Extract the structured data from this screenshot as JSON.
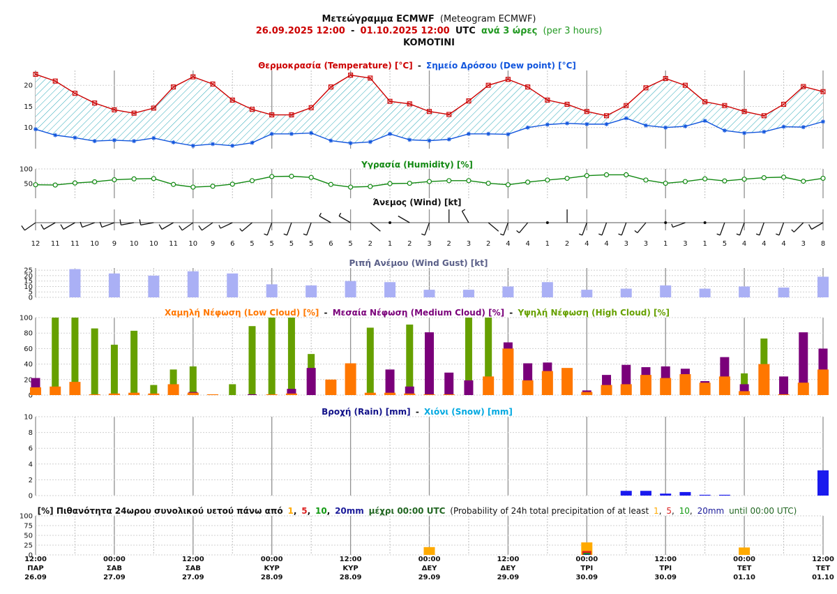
{
  "header": {
    "title_main": "Μετεώγραμμα ECMWF",
    "title_sub": "(Meteogram ECMWF)",
    "period_from": "26.09.2025 12:00",
    "period_sep": "-",
    "period_to": "01.10.2025 12:00",
    "period_utc": "UTC",
    "period_step": "ανά 3 ώρες",
    "period_step_en": "(per 3 hours)",
    "location": "KOMOTINI"
  },
  "panels": {
    "temp": {
      "title_a": "Θερμοκρασία (Temperature) [°C]",
      "sep": "-",
      "title_b": "Σημείο Δρόσου (Dew point) [°C]"
    },
    "humidity": {
      "title": "Υγρασία (Humidity) [%]"
    },
    "wind": {
      "title": "Άνεμος (Wind) [kt]"
    },
    "gust": {
      "title": "Ριπή Ανέμου (Wind Gust) [kt]"
    },
    "cloud": {
      "title_low": "Χαμηλή Νέφωση (Low Cloud) [%]",
      "sep1": "-",
      "title_med": "Μεσαία Νέφωση (Medium Cloud) [%]",
      "sep2": "-",
      "title_high": "Υψηλή Νέφωση (High Cloud) [%]"
    },
    "rain": {
      "title_rain": "Βροχή (Rain) [mm]",
      "sep": "-",
      "title_snow": "Χιόνι (Snow) [mm]"
    },
    "prob": {
      "pre": "[%] Πιθανότητα 24ωρου συνολικού υετού πάνω από",
      "t1": "1",
      "c1": ",",
      "t5": "5",
      "c2": ",",
      "t10": "10",
      "c3": ",",
      "t20": "20mm",
      "until": "μέχρι 00:00 UTC",
      "en_pre": "(Probability of 24h total precipitation of at least",
      "e1": "1",
      "ec1": ",",
      "e5": "5",
      "ec2": ",",
      "e10": "10",
      "ec3": ",",
      "e20": "20mm",
      "en_until": "until 00:00 UTC)"
    }
  },
  "colors": {
    "temperature": "#cc0000",
    "dewpoint": "#1155dd",
    "humidity": "#118811",
    "gust": "#aab0f5",
    "low_cloud": "#ff7700",
    "medium_cloud": "#7a007a",
    "high_cloud": "#66a000",
    "rain": "#1a1aee",
    "snow": "#00a8e0",
    "p1": "#ffaa00",
    "p5": "#dd2222",
    "p10": "#119911",
    "p20": "#1a1a99",
    "period_dates": "#cc0000",
    "period_step": "#229922"
  },
  "time_axis": {
    "ticks": [
      {
        "time": "12:00",
        "day": "ΠΑΡ",
        "date": "26.09"
      },
      {
        "time": "00:00",
        "day": "ΣΑΒ",
        "date": "27.09"
      },
      {
        "time": "12:00",
        "day": "ΣΑΒ",
        "date": "27.09"
      },
      {
        "time": "00:00",
        "day": "ΚΥΡ",
        "date": "28.09"
      },
      {
        "time": "12:00",
        "day": "ΚΥΡ",
        "date": "28.09"
      },
      {
        "time": "00:00",
        "day": "ΔΕΥ",
        "date": "29.09"
      },
      {
        "time": "12:00",
        "day": "ΔΕΥ",
        "date": "29.09"
      },
      {
        "time": "00:00",
        "day": "ΤΡΙ",
        "date": "30.09"
      },
      {
        "time": "12:00",
        "day": "ΤΡΙ",
        "date": "30.09"
      },
      {
        "time": "00:00",
        "day": "ΤΕΤ",
        "date": "01.10"
      },
      {
        "time": "12:00",
        "day": "ΤΕΤ",
        "date": "01.10"
      }
    ]
  },
  "chart_data": [
    {
      "type": "area",
      "title": "Θερμοκρασία (Temperature) [°C] - Σημείο Δρόσου (Dew point) [°C]",
      "x_step_hours": 3,
      "x_range": [
        "26.09.2025 12:00",
        "01.10.2025 12:00"
      ],
      "ylim": [
        5,
        23.5
      ],
      "yticks": [
        10,
        15,
        20
      ],
      "series": [
        {
          "name": "Θερμοκρασία (Temperature) [°C]",
          "values": [
            22.6,
            21.0,
            18.1,
            15.8,
            14.2,
            13.4,
            14.6,
            19.6,
            22.0,
            20.3,
            16.5,
            14.3,
            13.0,
            13.0,
            14.7,
            19.6,
            22.4,
            21.7,
            16.2,
            15.6,
            13.8,
            13.1,
            16.3,
            20.0,
            21.4,
            19.6,
            16.5,
            15.5,
            13.8,
            12.8,
            15.2,
            19.4,
            21.6,
            20.0,
            16.1,
            15.2,
            13.8,
            12.8,
            15.5,
            19.7,
            18.5
          ]
        },
        {
          "name": "Σημείο Δρόσου (Dew point) [°C]",
          "values": [
            9.6,
            8.2,
            7.6,
            6.8,
            7.0,
            6.8,
            7.5,
            6.5,
            5.7,
            6.1,
            5.7,
            6.4,
            8.5,
            8.5,
            8.7,
            6.9,
            6.3,
            6.6,
            8.5,
            7.1,
            6.9,
            7.2,
            8.5,
            8.5,
            8.4,
            10.0,
            10.7,
            11.0,
            10.8,
            10.8,
            12.2,
            10.5,
            10.0,
            10.3,
            11.6,
            9.3,
            8.7,
            9.0,
            10.2,
            10.1,
            11.4
          ]
        }
      ]
    },
    {
      "type": "line",
      "title": "Υγρασία (Humidity) [%]",
      "ylim": [
        0,
        100
      ],
      "yticks": [
        50,
        100
      ],
      "series": [
        {
          "name": "Υγρασία (Humidity) [%]",
          "values": [
            46,
            45,
            52,
            56,
            63,
            66,
            67,
            47,
            38,
            41,
            48,
            60,
            74,
            75,
            71,
            47,
            38,
            40,
            50,
            51,
            57,
            60,
            60,
            51,
            46,
            55,
            62,
            68,
            77,
            80,
            80,
            62,
            51,
            57,
            66,
            59,
            65,
            70,
            72,
            58,
            68
          ]
        }
      ]
    },
    {
      "type": "wind_barbs",
      "title": "Άνεμος (Wind) [kt]",
      "speed_labels": [
        "12",
        "11",
        "11",
        "10",
        "9",
        "10",
        "10",
        "11",
        "10",
        "9",
        "6",
        "5",
        "5",
        "5",
        "5",
        "6",
        "5",
        "2",
        "1",
        "2",
        "3",
        "2",
        "3",
        "2",
        "4",
        "4",
        "1",
        "2",
        "4",
        "4",
        "3",
        "3",
        "1",
        "3",
        "1",
        "5",
        "4",
        "4",
        "4",
        "3",
        "8"
      ],
      "directions_deg": [
        235,
        240,
        240,
        250,
        250,
        260,
        260,
        240,
        235,
        235,
        245,
        230,
        200,
        200,
        200,
        300,
        300,
        130,
        0,
        300,
        200,
        0,
        330,
        130,
        200,
        220,
        140,
        0,
        200,
        200,
        200,
        220,
        0,
        250,
        340,
        200,
        200,
        200,
        200,
        225,
        240
      ]
    },
    {
      "type": "bar",
      "title": "Ριπή Ανέμου (Wind Gust) [kt]",
      "ylim": [
        0,
        27
      ],
      "yticks": [
        0,
        5,
        10,
        15,
        20,
        25
      ],
      "series": [
        {
          "name": "Ριπή Ανέμου (Wind Gust) [kt]",
          "values": [
            26,
            22,
            20,
            24,
            22,
            12,
            11,
            15,
            14,
            7,
            7,
            10,
            14,
            7,
            8,
            11,
            8,
            10,
            9,
            19
          ]
        }
      ]
    },
    {
      "type": "bar",
      "title": "Χαμηλή Νέφωση (Low Cloud) [%] - Μεσαία Νέφωση (Medium Cloud) [%] - Υψηλή Νέφωση (High Cloud) [%]",
      "ylim": [
        0,
        100
      ],
      "yticks": [
        0,
        20,
        40,
        60,
        80,
        100
      ],
      "series": [
        {
          "name": "Χαμηλή Νέφωση (Low Cloud) [%]",
          "values": [
            10,
            11,
            17,
            1,
            2,
            3,
            2,
            14,
            3,
            1,
            0,
            0,
            1,
            2,
            0,
            20,
            41,
            3,
            3,
            2,
            1,
            1,
            0,
            24,
            60,
            19,
            31,
            35,
            4,
            13,
            14,
            26,
            22,
            27,
            16,
            24,
            5,
            40,
            1,
            16,
            33
          ]
        },
        {
          "name": "Μεσαία Νέφωση (Medium Cloud) [%]",
          "values": [
            22,
            0,
            0,
            0,
            0,
            0,
            0,
            0,
            4,
            0,
            0,
            1,
            0,
            8,
            35,
            3,
            0,
            0,
            33,
            11,
            81,
            29,
            19,
            20,
            68,
            41,
            42,
            0,
            6,
            26,
            39,
            36,
            37,
            34,
            18,
            49,
            14,
            0,
            24,
            81,
            60
          ]
        },
        {
          "name": "Υψηλή Νέφωση (High Cloud) [%]",
          "values": [
            0,
            100,
            100,
            86,
            65,
            83,
            13,
            33,
            37,
            0,
            14,
            89,
            100,
            100,
            53,
            0,
            0,
            87,
            0,
            91,
            0,
            0,
            100,
            100,
            0,
            0,
            0,
            0,
            0,
            0,
            0,
            0,
            0,
            0,
            0,
            0,
            28,
            73,
            0,
            0,
            0
          ]
        }
      ]
    },
    {
      "type": "bar",
      "title": "Βροχή (Rain) [mm] - Χιόνι (Snow) [mm]",
      "ylim": [
        0,
        10
      ],
      "yticks": [
        0,
        2,
        4,
        6,
        8,
        10
      ],
      "series": [
        {
          "name": "Βροχή (Rain) [mm]",
          "values": [
            0,
            0,
            0,
            0,
            0,
            0,
            0,
            0,
            0,
            0,
            0,
            0,
            0,
            0,
            0,
            0,
            0,
            0,
            0,
            0,
            0,
            0,
            0,
            0,
            0,
            0,
            0,
            0,
            0,
            0,
            0.6,
            0.6,
            0.25,
            0.45,
            0.1,
            0.1,
            0,
            0,
            0,
            0,
            3.2
          ]
        },
        {
          "name": "Χιόνι (Snow) [mm]",
          "values": [
            0,
            0,
            0,
            0,
            0,
            0,
            0,
            0,
            0,
            0,
            0,
            0,
            0,
            0,
            0,
            0,
            0,
            0,
            0,
            0,
            0,
            0,
            0,
            0,
            0,
            0,
            0,
            0,
            0,
            0,
            0,
            0,
            0,
            0,
            0,
            0,
            0,
            0,
            0,
            0,
            0
          ]
        }
      ]
    },
    {
      "type": "bar",
      "title": "Πιθανότητα 24ωρου συνολικού υετού (Probability of 24h total precipitation)",
      "ylim": [
        0,
        100
      ],
      "yticks": [
        0,
        25,
        50,
        75,
        100
      ],
      "categories": [
        "27.09",
        "28.09",
        "29.09",
        "30.09",
        "01.10"
      ],
      "series": [
        {
          "name": "1mm",
          "values": [
            0,
            0,
            20,
            32,
            19
          ]
        },
        {
          "name": "5mm",
          "values": [
            0,
            0,
            0,
            10,
            0
          ]
        },
        {
          "name": "10mm",
          "values": [
            0,
            0,
            0,
            5,
            0
          ]
        },
        {
          "name": "20mm",
          "values": [
            0,
            0,
            0,
            2,
            0
          ]
        }
      ]
    }
  ]
}
